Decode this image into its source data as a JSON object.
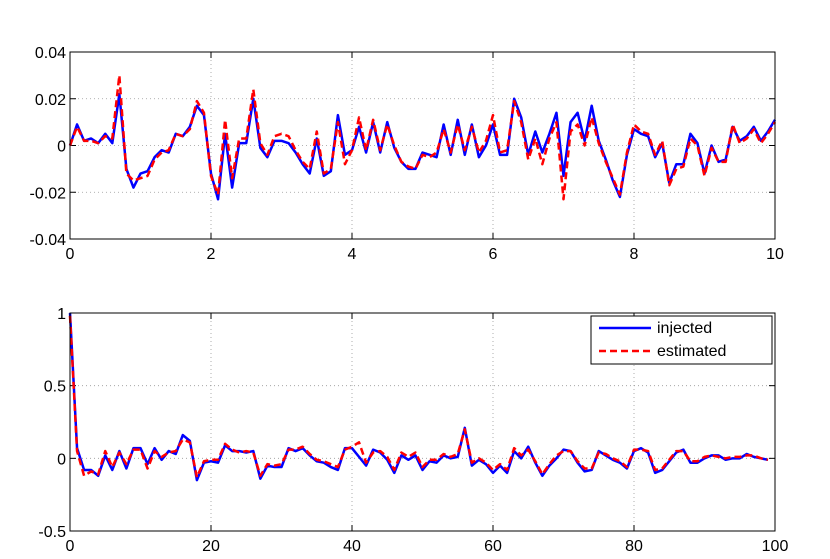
{
  "chart_data": [
    {
      "type": "line",
      "x": [
        0,
        0.1,
        0.2,
        0.3,
        0.4,
        0.5,
        0.6,
        0.7,
        0.8,
        0.9,
        1,
        1.1,
        1.2,
        1.3,
        1.4,
        1.5,
        1.6,
        1.7,
        1.8,
        1.9,
        2,
        2.1,
        2.2,
        2.3,
        2.4,
        2.5,
        2.6,
        2.7,
        2.8,
        2.9,
        3,
        3.1,
        3.2,
        3.3,
        3.4,
        3.5,
        3.6,
        3.7,
        3.8,
        3.9,
        4,
        4.1,
        4.2,
        4.3,
        4.4,
        4.5,
        4.6,
        4.7,
        4.8,
        4.9,
        5,
        5.1,
        5.2,
        5.3,
        5.4,
        5.5,
        5.6,
        5.7,
        5.8,
        5.9,
        6,
        6.1,
        6.2,
        6.3,
        6.4,
        6.5,
        6.6,
        6.7,
        6.8,
        6.9,
        7,
        7.1,
        7.2,
        7.3,
        7.4,
        7.5,
        7.6,
        7.7,
        7.8,
        7.9,
        8,
        8.1,
        8.2,
        8.3,
        8.4,
        8.5,
        8.6,
        8.7,
        8.8,
        8.9,
        9,
        9.1,
        9.2,
        9.3,
        9.4,
        9.5,
        9.6,
        9.7,
        9.8,
        9.9,
        10
      ],
      "series": [
        {
          "name": "injected",
          "color": "#0000ff",
          "dash": false,
          "values": [
            0,
            0.009,
            0.002,
            0.003,
            0.001,
            0.005,
            0.001,
            0.022,
            -0.01,
            -0.018,
            -0.012,
            -0.011,
            -0.005,
            -0.002,
            -0.003,
            0.005,
            0.004,
            0.008,
            0.017,
            0.013,
            -0.012,
            -0.023,
            0.005,
            -0.018,
            0.001,
            0.001,
            0.02,
            -0.001,
            -0.005,
            0.002,
            0.002,
            0.001,
            -0.003,
            -0.008,
            -0.012,
            0.003,
            -0.013,
            -0.011,
            0.013,
            -0.004,
            -0.002,
            0.008,
            -0.003,
            0.01,
            -0.003,
            0.01,
            -0.001,
            -0.007,
            -0.01,
            -0.01,
            -0.003,
            -0.004,
            -0.005,
            0.009,
            -0.004,
            0.011,
            -0.004,
            0.009,
            -0.005,
            0.0,
            0.009,
            -0.004,
            -0.004,
            0.02,
            0.012,
            -0.004,
            0.006,
            -0.003,
            0.005,
            0.014,
            -0.013,
            0.01,
            0.014,
            0.002,
            0.017,
            0.002,
            -0.006,
            -0.015,
            -0.022,
            -0.004,
            0.007,
            0.005,
            0.004,
            -0.005,
            0.001,
            -0.016,
            -0.008,
            -0.008,
            0.005,
            0.001,
            -0.012,
            0.0,
            -0.007,
            -0.006,
            0.008,
            0.002,
            0.004,
            0.008,
            0.002,
            0.006,
            0.011
          ]
        },
        {
          "name": "estimated",
          "color": "#ff0000",
          "dash": true,
          "values": [
            0,
            0.008,
            0.002,
            0.002,
            0.001,
            0.004,
            0.003,
            0.03,
            -0.012,
            -0.015,
            -0.014,
            -0.013,
            -0.006,
            -0.003,
            -0.002,
            0.005,
            0.004,
            0.007,
            0.019,
            0.014,
            -0.013,
            -0.021,
            0.011,
            -0.014,
            0.003,
            0.003,
            0.024,
            0.001,
            -0.004,
            0.004,
            0.005,
            0.004,
            -0.002,
            -0.007,
            -0.01,
            0.006,
            -0.012,
            -0.01,
            0.01,
            -0.008,
            -0.002,
            0.012,
            -0.002,
            0.011,
            -0.002,
            0.009,
            0.0,
            -0.007,
            -0.009,
            -0.01,
            -0.004,
            -0.005,
            -0.003,
            0.007,
            -0.003,
            0.009,
            -0.002,
            0.008,
            -0.003,
            0.002,
            0.013,
            -0.003,
            -0.002,
            0.019,
            0.01,
            -0.006,
            0.003,
            -0.008,
            0.003,
            0.01,
            -0.023,
            0.006,
            0.009,
            0.0,
            0.012,
            0.001,
            -0.007,
            -0.014,
            -0.021,
            -0.003,
            0.009,
            0.006,
            0.005,
            -0.004,
            0.002,
            -0.017,
            -0.01,
            -0.009,
            0.003,
            0.0,
            -0.013,
            -0.001,
            -0.007,
            -0.007,
            0.009,
            0.001,
            0.003,
            0.007,
            0.001,
            0.005,
            0.01
          ]
        }
      ],
      "xlim": [
        0,
        10
      ],
      "xticks": [
        0,
        2,
        4,
        6,
        8,
        10
      ],
      "ylim": [
        -0.04,
        0.04
      ],
      "yticks": [
        -0.04,
        -0.02,
        0,
        0.02,
        0.04
      ],
      "grid": true
    },
    {
      "type": "line",
      "x": [
        0,
        1,
        2,
        3,
        4,
        5,
        6,
        7,
        8,
        9,
        10,
        11,
        12,
        13,
        14,
        15,
        16,
        17,
        18,
        19,
        20,
        21,
        22,
        23,
        24,
        25,
        26,
        27,
        28,
        29,
        30,
        31,
        32,
        33,
        34,
        35,
        36,
        37,
        38,
        39,
        40,
        41,
        42,
        43,
        44,
        45,
        46,
        47,
        48,
        49,
        50,
        51,
        52,
        53,
        54,
        55,
        56,
        57,
        58,
        59,
        60,
        61,
        62,
        63,
        64,
        65,
        66,
        67,
        68,
        69,
        70,
        71,
        72,
        73,
        74,
        75,
        76,
        77,
        78,
        79,
        80,
        81,
        82,
        83,
        84,
        85,
        86,
        87,
        88,
        89,
        90,
        91,
        92,
        93,
        94,
        95,
        96,
        97,
        98,
        99
      ],
      "series": [
        {
          "name": "injected",
          "color": "#0000ff",
          "dash": false,
          "values": [
            1,
            0.07,
            -0.08,
            -0.08,
            -0.12,
            0.02,
            -0.08,
            0.05,
            -0.07,
            0.07,
            0.07,
            -0.04,
            0.07,
            -0.01,
            0.05,
            0.03,
            0.16,
            0.12,
            -0.15,
            -0.03,
            -0.02,
            -0.03,
            0.09,
            0.05,
            0.05,
            0.04,
            0.05,
            -0.14,
            -0.05,
            -0.06,
            -0.06,
            0.07,
            0.05,
            0.07,
            0.02,
            -0.02,
            -0.03,
            -0.06,
            -0.08,
            0.07,
            0.07,
            0.01,
            -0.05,
            0.06,
            0.04,
            -0.01,
            -0.1,
            0.02,
            -0.01,
            0.02,
            -0.08,
            -0.02,
            -0.03,
            0.02,
            0.0,
            0.01,
            0.21,
            -0.05,
            -0.01,
            -0.04,
            -0.1,
            -0.05,
            -0.1,
            0.05,
            0.0,
            0.08,
            -0.03,
            -0.12,
            -0.05,
            0.0,
            0.06,
            0.05,
            -0.03,
            -0.09,
            -0.08,
            0.05,
            0.02,
            -0.01,
            -0.03,
            -0.07,
            0.05,
            0.07,
            0.04,
            -0.1,
            -0.08,
            -0.02,
            0.04,
            0.06,
            -0.03,
            -0.03,
            0.0,
            0.02,
            0.02,
            -0.01,
            0.0,
            0.0,
            0.03,
            0.01,
            0.0,
            -0.01
          ]
        },
        {
          "name": "estimated",
          "color": "#ff0000",
          "dash": true,
          "values": [
            0.98,
            0.05,
            -0.12,
            -0.09,
            -0.11,
            0.05,
            -0.06,
            0.04,
            -0.04,
            0.06,
            0.06,
            -0.07,
            0.05,
            0.01,
            0.04,
            0.05,
            0.13,
            0.11,
            -0.13,
            -0.02,
            -0.01,
            -0.01,
            0.1,
            0.06,
            0.04,
            0.05,
            0.04,
            -0.12,
            -0.04,
            -0.05,
            -0.04,
            0.06,
            0.06,
            0.08,
            0.03,
            -0.01,
            -0.02,
            -0.04,
            -0.06,
            0.06,
            0.08,
            0.11,
            -0.03,
            0.04,
            0.05,
            0.01,
            -0.08,
            0.04,
            0.01,
            0.04,
            -0.06,
            -0.01,
            -0.01,
            0.03,
            0.01,
            0.03,
            0.2,
            -0.03,
            0.0,
            -0.03,
            -0.08,
            -0.04,
            -0.08,
            0.07,
            0.02,
            0.06,
            -0.02,
            -0.11,
            -0.04,
            0.02,
            0.05,
            0.05,
            -0.02,
            -0.07,
            -0.07,
            0.04,
            0.03,
            0.0,
            -0.02,
            -0.06,
            0.06,
            0.06,
            0.05,
            -0.08,
            -0.07,
            -0.01,
            0.05,
            0.05,
            -0.02,
            -0.02,
            0.01,
            0.02,
            0.01,
            0.0,
            0.01,
            0.01,
            0.02,
            0.02,
            0.0,
            -0.01
          ]
        }
      ],
      "xlim": [
        0,
        100
      ],
      "xticks": [
        0,
        20,
        40,
        60,
        80,
        100
      ],
      "ylim": [
        -0.5,
        1
      ],
      "yticks": [
        -0.5,
        0,
        0.5,
        1
      ],
      "grid": true,
      "legend": "upper right"
    }
  ]
}
